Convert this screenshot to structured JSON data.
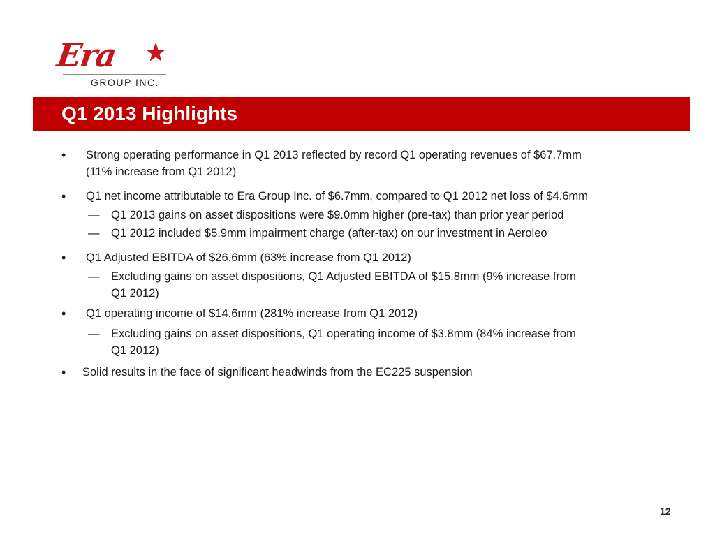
{
  "logo": {
    "wordmark": "Era",
    "subtitle": "GROUP INC."
  },
  "slide": {
    "title": "Q1 2013 Highlights",
    "page_number": "12",
    "bullet_marker": "•",
    "sub_marker": "—",
    "bullets": [
      {
        "lines": [
          "Strong operating performance in Q1 2013 reflected by record Q1 operating revenues of $67.7mm",
          "(11% increase from Q1 2012)"
        ],
        "subs": []
      },
      {
        "lines": [
          "Q1 net income attributable to Era Group Inc. of $6.7mm, compared to Q1 2012 net loss of $4.6mm"
        ],
        "subs": [
          {
            "lines": [
              "Q1 2013 gains on asset dispositions were $9.0mm higher (pre-tax) than prior year period"
            ]
          },
          {
            "lines": [
              "Q1 2012 included $5.9mm impairment charge (after-tax) on our investment in Aeroleo"
            ]
          }
        ]
      },
      {
        "lines": [
          "Q1 Adjusted EBITDA of $26.6mm (63% increase from Q1 2012)"
        ],
        "subs": [
          {
            "lines": [
              "Excluding gains on asset dispositions, Q1 Adjusted EBITDA of $15.8mm (9% increase from",
              "Q1 2012)"
            ]
          }
        ]
      },
      {
        "lines": [
          "Q1 operating income of $14.6mm (281% increase from Q1 2012)"
        ],
        "subs": [
          {
            "lines": [
              "Excluding gains on asset dispositions, Q1 operating income of $3.8mm (84% increase from",
              "Q1 2012)"
            ]
          }
        ]
      },
      {
        "lines": [
          "Solid results in the face of significant headwinds from the EC225 suspension"
        ],
        "subs": []
      }
    ]
  }
}
